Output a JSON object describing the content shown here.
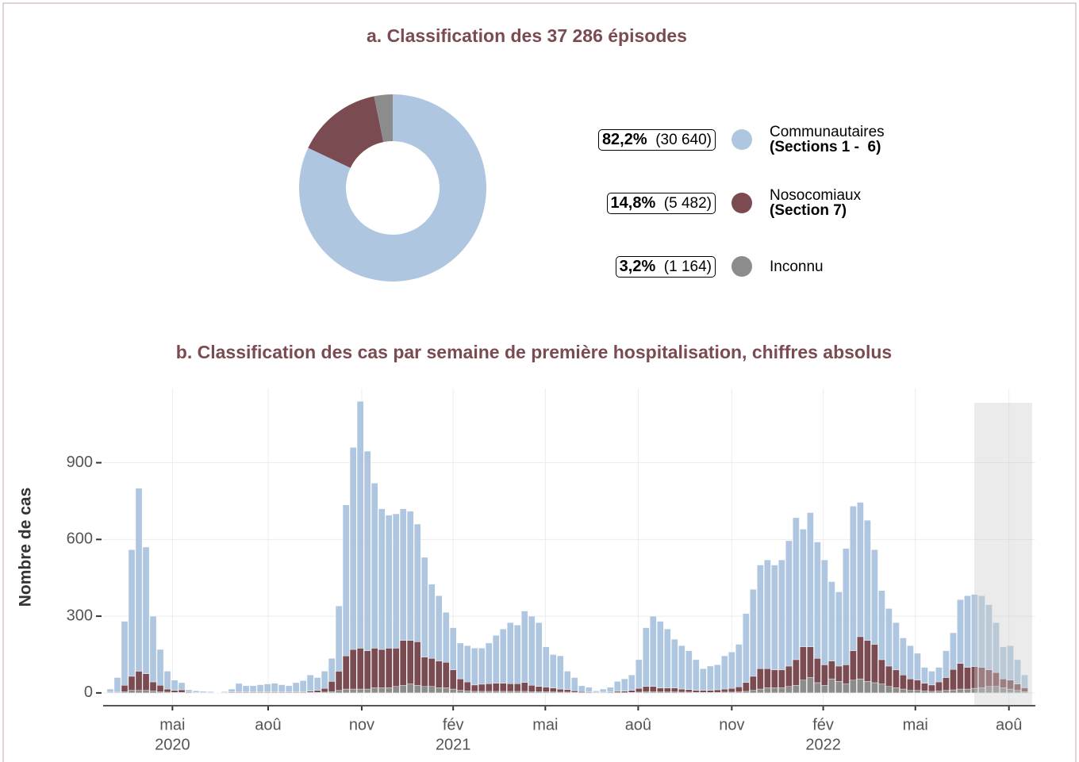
{
  "chart_data": [
    {
      "type": "donut",
      "title": "a. Classification des 37 286 épisodes",
      "categories": [
        "Communautaires",
        "Nosocomiaux",
        "Inconnu"
      ],
      "sublabels": [
        "(Sections 1 -  6)",
        "(Section 7)",
        null
      ],
      "values": [
        82.2,
        14.8,
        3.2
      ],
      "value_labels": [
        "82,2%",
        "14,8%",
        "3,2%"
      ],
      "counts": [
        30640,
        5482,
        1164
      ],
      "count_labels": [
        "(30 640)",
        "(5 482)",
        "(1 164)"
      ],
      "colors": [
        "#aec6df",
        "#7b4b52",
        "#8c8c8c"
      ]
    },
    {
      "type": "stacked_bar",
      "title": "b. Classification des cas par semaine de première hospitalisation, chiffres absolus",
      "ylabel": "Nombre de cas",
      "ylim": [
        -50,
        1190
      ],
      "yticks": [
        0,
        300,
        600,
        900
      ],
      "xlim": [
        -1,
        129.5
      ],
      "xticks": [
        {
          "value": 8.7,
          "label": "mai"
        },
        {
          "value": 22.1,
          "label": "aoû"
        },
        {
          "value": 35.2,
          "label": "nov"
        },
        {
          "value": 48.0,
          "label": "fév"
        },
        {
          "value": 60.9,
          "label": "mai"
        },
        {
          "value": 73.9,
          "label": "aoû"
        },
        {
          "value": 87.0,
          "label": "nov"
        },
        {
          "value": 99.8,
          "label": "fév"
        },
        {
          "value": 112.7,
          "label": "mai"
        },
        {
          "value": 125.8,
          "label": "aoû"
        }
      ],
      "xticks_year": [
        {
          "value": 8.7,
          "label": "2020"
        },
        {
          "value": 48.0,
          "label": "2021"
        },
        {
          "value": 99.8,
          "label": "2022"
        }
      ],
      "grid": true,
      "series": [
        {
          "color": "#8c8c8c",
          "values": [
            1,
            1,
            5,
            10,
            10,
            10,
            8,
            5,
            3,
            2,
            2,
            1,
            0,
            0,
            0,
            0,
            0,
            1,
            1,
            1,
            1,
            1,
            1,
            1,
            1,
            1,
            1,
            1,
            2,
            2,
            3,
            5,
            10,
            15,
            15,
            15,
            15,
            20,
            20,
            20,
            25,
            30,
            35,
            30,
            25,
            25,
            20,
            20,
            15,
            10,
            8,
            6,
            6,
            6,
            6,
            6,
            6,
            6,
            6,
            5,
            5,
            5,
            4,
            3,
            3,
            2,
            1,
            1,
            1,
            1,
            1,
            1,
            1,
            2,
            3,
            5,
            5,
            4,
            4,
            4,
            3,
            3,
            2,
            2,
            2,
            2,
            3,
            3,
            4,
            6,
            10,
            15,
            20,
            20,
            20,
            25,
            30,
            50,
            60,
            40,
            30,
            55,
            45,
            35,
            50,
            55,
            45,
            40,
            35,
            25,
            20,
            15,
            10,
            10,
            8,
            6,
            8,
            10,
            12,
            15,
            15,
            18,
            20,
            25,
            25,
            20,
            15,
            10,
            5
          ]
        },
        {
          "color": "#7b4b52",
          "values": [
            2,
            2,
            25,
            55,
            75,
            65,
            35,
            25,
            12,
            8,
            10,
            3,
            1,
            1,
            1,
            1,
            1,
            3,
            3,
            3,
            3,
            3,
            3,
            3,
            3,
            3,
            3,
            3,
            5,
            8,
            15,
            40,
            75,
            130,
            155,
            160,
            150,
            155,
            150,
            155,
            150,
            175,
            170,
            170,
            115,
            110,
            105,
            100,
            75,
            45,
            35,
            25,
            28,
            30,
            32,
            32,
            30,
            30,
            35,
            25,
            20,
            18,
            15,
            12,
            10,
            6,
            4,
            3,
            2,
            2,
            3,
            5,
            6,
            8,
            15,
            20,
            20,
            15,
            15,
            15,
            12,
            10,
            8,
            8,
            8,
            10,
            12,
            15,
            20,
            35,
            55,
            80,
            75,
            70,
            70,
            80,
            100,
            130,
            120,
            95,
            80,
            70,
            60,
            75,
            115,
            165,
            160,
            150,
            95,
            80,
            70,
            55,
            45,
            40,
            30,
            25,
            35,
            50,
            80,
            100,
            85,
            85,
            80,
            65,
            55,
            35,
            35,
            25,
            15
          ]
        },
        {
          "color": "#aec6df",
          "values": [
            12,
            57,
            250,
            495,
            715,
            495,
            257,
            140,
            70,
            40,
            28,
            8,
            7,
            5,
            4,
            1,
            4,
            11,
            33,
            24,
            24,
            28,
            31,
            34,
            28,
            24,
            36,
            44,
            63,
            50,
            67,
            90,
            255,
            590,
            790,
            965,
            780,
            645,
            550,
            520,
            525,
            515,
            505,
            460,
            390,
            290,
            255,
            195,
            165,
            140,
            142,
            144,
            141,
            159,
            187,
            212,
            239,
            229,
            279,
            270,
            250,
            157,
            131,
            130,
            72,
            52,
            23,
            18,
            5,
            12,
            18,
            39,
            48,
            60,
            112,
            230,
            275,
            261,
            231,
            191,
            170,
            152,
            120,
            85,
            95,
            98,
            130,
            142,
            166,
            269,
            340,
            405,
            425,
            410,
            430,
            490,
            555,
            460,
            525,
            455,
            410,
            310,
            290,
            455,
            565,
            525,
            470,
            370,
            270,
            225,
            185,
            145,
            130,
            105,
            62,
            54,
            57,
            105,
            143,
            250,
            280,
            282,
            280,
            255,
            195,
            125,
            135,
            95,
            50
          ]
        }
      ]
    }
  ]
}
